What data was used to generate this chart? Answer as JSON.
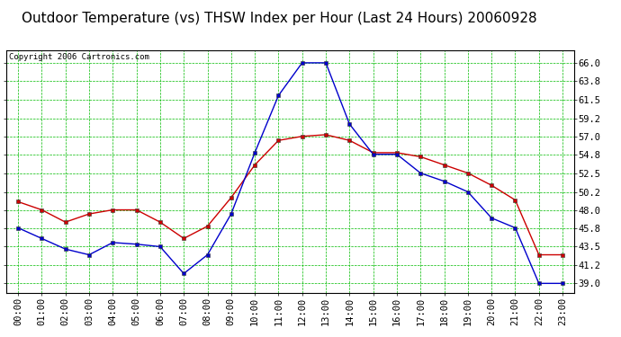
{
  "title": "Outdoor Temperature (vs) THSW Index per Hour (Last 24 Hours) 20060928",
  "copyright": "Copyright 2006 Cartronics.com",
  "hours": [
    "00:00",
    "01:00",
    "02:00",
    "03:00",
    "04:00",
    "05:00",
    "06:00",
    "07:00",
    "08:00",
    "09:00",
    "10:00",
    "11:00",
    "12:00",
    "13:00",
    "14:00",
    "15:00",
    "16:00",
    "17:00",
    "18:00",
    "19:00",
    "20:00",
    "21:00",
    "22:00",
    "23:00"
  ],
  "outdoor_temp": [
    49.0,
    48.0,
    46.5,
    47.5,
    48.0,
    48.0,
    46.5,
    44.5,
    46.0,
    49.5,
    53.5,
    56.5,
    57.0,
    57.2,
    56.5,
    55.0,
    55.0,
    54.5,
    53.5,
    52.5,
    51.0,
    49.2,
    42.5,
    42.5
  ],
  "thsw_index": [
    45.8,
    44.5,
    43.2,
    42.5,
    44.0,
    43.8,
    43.5,
    40.2,
    42.5,
    47.5,
    55.0,
    62.0,
    66.0,
    66.0,
    58.5,
    54.8,
    54.8,
    52.5,
    51.5,
    50.2,
    47.0,
    45.8,
    39.0,
    39.0
  ],
  "temp_color": "#cc0000",
  "thsw_color": "#0000cc",
  "background_color": "#ffffff",
  "grid_color": "#00bb00",
  "ylim_min": 37.8,
  "ylim_max": 67.5,
  "yticks": [
    39.0,
    41.2,
    43.5,
    45.8,
    48.0,
    50.2,
    52.5,
    54.8,
    57.0,
    59.2,
    61.5,
    63.8,
    66.0
  ],
  "title_fontsize": 11,
  "tick_fontsize": 7.5,
  "copyright_fontsize": 6.5,
  "marker_size": 3,
  "line_width": 1.0
}
